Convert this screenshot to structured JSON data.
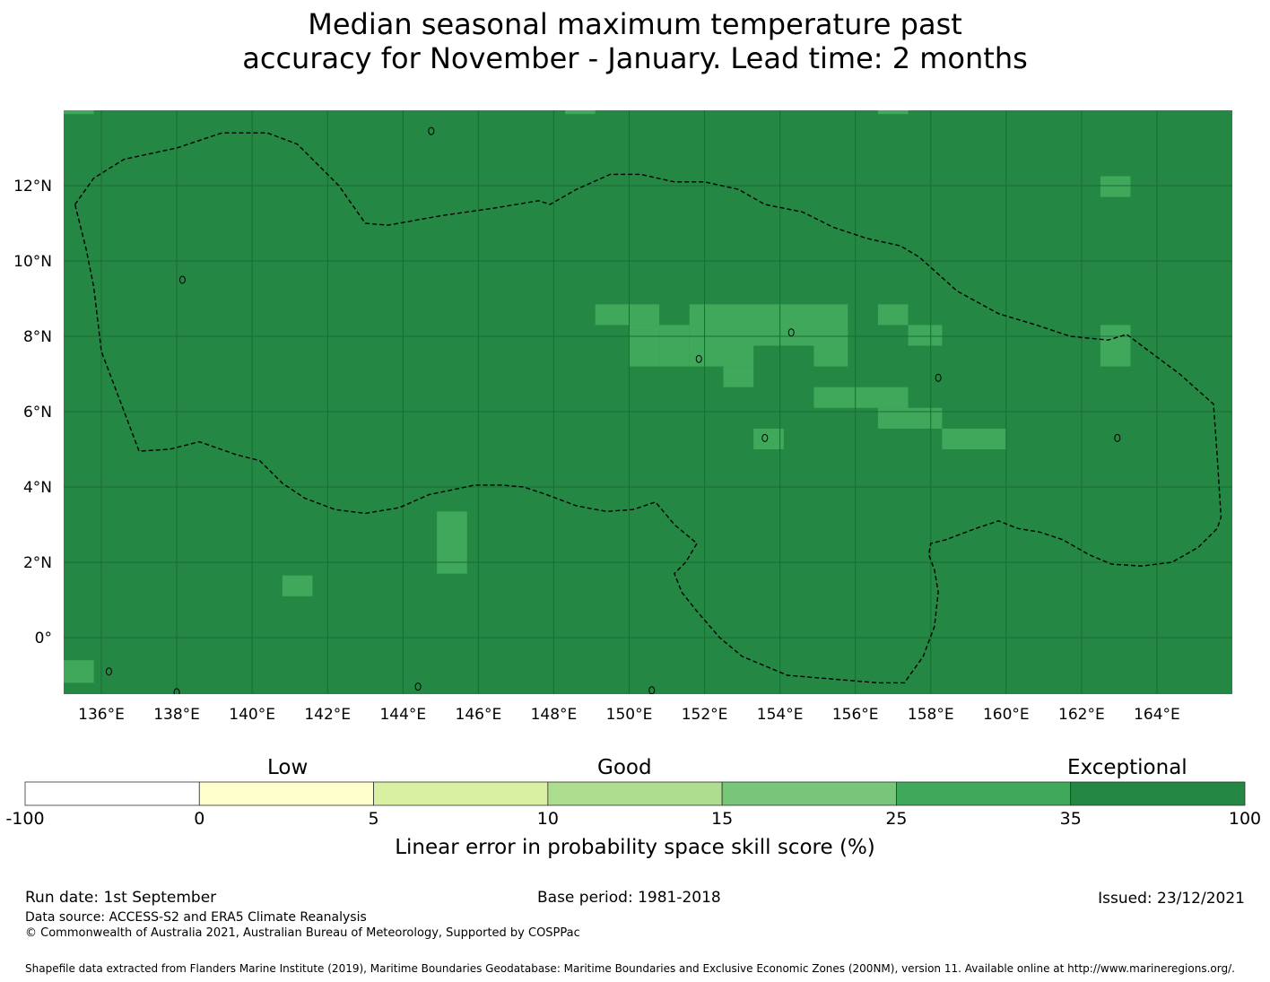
{
  "title": {
    "line1": "Median seasonal maximum temperature past",
    "line2": "accuracy for November - January. Lead time: 2 months"
  },
  "map": {
    "lon_range": [
      135,
      166
    ],
    "lat_range": [
      -1.5,
      14
    ],
    "x_ticks": [
      {
        "lon": 136,
        "label": "136°E"
      },
      {
        "lon": 138,
        "label": "138°E"
      },
      {
        "lon": 140,
        "label": "140°E"
      },
      {
        "lon": 142,
        "label": "142°E"
      },
      {
        "lon": 144,
        "label": "144°E"
      },
      {
        "lon": 146,
        "label": "146°E"
      },
      {
        "lon": 148,
        "label": "148°E"
      },
      {
        "lon": 150,
        "label": "150°E"
      },
      {
        "lon": 152,
        "label": "152°E"
      },
      {
        "lon": 154,
        "label": "154°E"
      },
      {
        "lon": 156,
        "label": "156°E"
      },
      {
        "lon": 158,
        "label": "158°E"
      },
      {
        "lon": 160,
        "label": "160°E"
      },
      {
        "lon": 162,
        "label": "162°E"
      },
      {
        "lon": 164,
        "label": "164°E"
      }
    ],
    "y_ticks": [
      {
        "lat": 0,
        "label": "0°"
      },
      {
        "lat": 2,
        "label": "2°N"
      },
      {
        "lat": 4,
        "label": "4°N"
      },
      {
        "lat": 6,
        "label": "6°N"
      },
      {
        "lat": 8,
        "label": "8°N"
      },
      {
        "lat": 10,
        "label": "10°N"
      },
      {
        "lat": 12,
        "label": "12°N"
      }
    ],
    "background_color": "#248743",
    "gridlines": true,
    "eez_boundary_style": "dashed",
    "eez_boundary": [
      [
        135.3,
        11.5
      ],
      [
        135.8,
        12.2
      ],
      [
        136.6,
        12.7
      ],
      [
        138.0,
        13.0
      ],
      [
        139.2,
        13.4
      ],
      [
        140.4,
        13.4
      ],
      [
        141.2,
        13.1
      ],
      [
        142.3,
        12.0
      ],
      [
        143.0,
        11.0
      ],
      [
        143.6,
        10.95
      ],
      [
        145.0,
        11.2
      ],
      [
        146.4,
        11.4
      ],
      [
        147.6,
        11.6
      ],
      [
        147.9,
        11.5
      ],
      [
        148.6,
        11.9
      ],
      [
        149.5,
        12.3
      ],
      [
        150.3,
        12.3
      ],
      [
        151.2,
        12.1
      ],
      [
        152.0,
        12.1
      ],
      [
        152.9,
        11.9
      ],
      [
        153.6,
        11.5
      ],
      [
        154.6,
        11.3
      ],
      [
        155.4,
        10.9
      ],
      [
        156.3,
        10.6
      ],
      [
        157.2,
        10.4
      ],
      [
        157.7,
        10.1
      ],
      [
        158.7,
        9.2
      ],
      [
        159.8,
        8.6
      ],
      [
        160.8,
        8.3
      ],
      [
        161.7,
        8.0
      ],
      [
        162.7,
        7.9
      ],
      [
        163.2,
        8.05
      ],
      [
        163.8,
        7.6
      ],
      [
        164.6,
        7.0
      ],
      [
        165.5,
        6.2
      ],
      [
        165.6,
        4.8
      ],
      [
        165.7,
        3.2
      ],
      [
        165.6,
        2.9
      ],
      [
        165.1,
        2.4
      ],
      [
        164.4,
        2.0
      ],
      [
        163.6,
        1.9
      ],
      [
        162.8,
        1.95
      ],
      [
        162.2,
        2.2
      ],
      [
        161.5,
        2.6
      ],
      [
        160.9,
        2.8
      ],
      [
        160.3,
        2.9
      ],
      [
        159.8,
        3.1
      ],
      [
        159.2,
        2.9
      ],
      [
        158.4,
        2.6
      ],
      [
        158.0,
        2.5
      ],
      [
        157.95,
        2.2
      ],
      [
        158.1,
        1.8
      ],
      [
        158.2,
        1.2
      ],
      [
        158.1,
        0.3
      ],
      [
        157.8,
        -0.5
      ],
      [
        157.3,
        -1.2
      ],
      [
        156.6,
        -1.2
      ],
      [
        155.4,
        -1.1
      ],
      [
        154.2,
        -1.0
      ],
      [
        153.0,
        -0.5
      ],
      [
        152.4,
        0.0
      ],
      [
        151.8,
        0.7
      ],
      [
        151.4,
        1.2
      ],
      [
        151.2,
        1.7
      ],
      [
        151.5,
        2.0
      ],
      [
        151.8,
        2.5
      ],
      [
        151.2,
        3.0
      ],
      [
        150.7,
        3.6
      ],
      [
        150.1,
        3.4
      ],
      [
        149.4,
        3.35
      ],
      [
        148.6,
        3.5
      ],
      [
        147.8,
        3.8
      ],
      [
        147.2,
        4.0
      ],
      [
        146.6,
        4.05
      ],
      [
        145.9,
        4.05
      ],
      [
        145.2,
        3.9
      ],
      [
        144.7,
        3.8
      ],
      [
        143.9,
        3.45
      ],
      [
        143.0,
        3.3
      ],
      [
        142.2,
        3.4
      ],
      [
        141.4,
        3.7
      ],
      [
        140.8,
        4.1
      ],
      [
        140.2,
        4.7
      ],
      [
        139.6,
        4.85
      ],
      [
        138.6,
        5.2
      ],
      [
        137.8,
        5.0
      ],
      [
        137.0,
        4.95
      ],
      [
        136.0,
        7.6
      ],
      [
        135.8,
        9.3
      ],
      [
        135.6,
        10.3
      ],
      [
        135.3,
        11.5
      ]
    ],
    "skill_patches": [
      {
        "lon": [
          135.0,
          135.8
        ],
        "lat": [
          13.9,
          14.0
        ]
      },
      {
        "lon": [
          148.3,
          149.1
        ],
        "lat": [
          13.9,
          14.0
        ]
      },
      {
        "lon": [
          156.6,
          157.4
        ],
        "lat": [
          13.9,
          14.0
        ]
      },
      {
        "lon": [
          162.5,
          163.3
        ],
        "lat": [
          11.7,
          12.25
        ]
      },
      {
        "lon": [
          149.1,
          150.8
        ],
        "lat": [
          8.3,
          8.85
        ]
      },
      {
        "lon": [
          150.0,
          150.8
        ],
        "lat": [
          7.2,
          8.3
        ]
      },
      {
        "lon": [
          150.8,
          151.6
        ],
        "lat": [
          7.2,
          8.3
        ]
      },
      {
        "lon": [
          151.6,
          155.8
        ],
        "lat": [
          7.75,
          8.85
        ]
      },
      {
        "lon": [
          151.6,
          153.3
        ],
        "lat": [
          7.2,
          7.75
        ]
      },
      {
        "lon": [
          152.5,
          153.3
        ],
        "lat": [
          6.65,
          7.2
        ]
      },
      {
        "lon": [
          154.9,
          155.8
        ],
        "lat": [
          7.2,
          7.75
        ]
      },
      {
        "lon": [
          156.6,
          157.4
        ],
        "lat": [
          8.3,
          8.85
        ]
      },
      {
        "lon": [
          157.4,
          158.3
        ],
        "lat": [
          7.75,
          8.3
        ]
      },
      {
        "lon": [
          162.5,
          163.3
        ],
        "lat": [
          7.2,
          8.3
        ]
      },
      {
        "lon": [
          154.9,
          157.4
        ],
        "lat": [
          6.1,
          6.65
        ]
      },
      {
        "lon": [
          156.6,
          158.3
        ],
        "lat": [
          5.55,
          6.1
        ]
      },
      {
        "lon": [
          158.3,
          160.0
        ],
        "lat": [
          5.0,
          5.55
        ]
      },
      {
        "lon": [
          153.3,
          154.1
        ],
        "lat": [
          5.0,
          5.55
        ]
      },
      {
        "lon": [
          144.9,
          145.7
        ],
        "lat": [
          1.7,
          3.35
        ]
      },
      {
        "lon": [
          140.8,
          141.6
        ],
        "lat": [
          1.1,
          1.65
        ]
      },
      {
        "lon": [
          135.0,
          135.8
        ],
        "lat": [
          -1.2,
          -0.6
        ]
      }
    ],
    "skill_patch_color": "#3fa85a",
    "islands": [
      {
        "lon": 144.75,
        "lat": 13.45
      },
      {
        "lon": 138.15,
        "lat": 9.5
      },
      {
        "lon": 151.85,
        "lat": 7.4
      },
      {
        "lon": 158.2,
        "lat": 6.9
      },
      {
        "lon": 162.95,
        "lat": 5.3
      },
      {
        "lon": 153.6,
        "lat": 5.3
      },
      {
        "lon": 154.3,
        "lat": 8.1
      },
      {
        "lon": 144.4,
        "lat": -1.3
      },
      {
        "lon": 150.6,
        "lat": -1.4
      },
      {
        "lon": 136.2,
        "lat": -0.9
      },
      {
        "lon": 138.0,
        "lat": -1.45
      }
    ]
  },
  "colorbar": {
    "categories": [
      "Low",
      "Good",
      "Exceptional"
    ],
    "tick_labels": [
      "-100",
      "0",
      "5",
      "10",
      "15",
      "25",
      "35",
      "100"
    ],
    "colors": [
      "#ffffff",
      "#ffffcc",
      "#d9f0a3",
      "#addd8e",
      "#78c679",
      "#3fa85a",
      "#248743"
    ],
    "label": "Linear error in probability space skill score (%)"
  },
  "footer": {
    "run_date": "Run date: 1st September",
    "base_period": "Base period: 1981-2018",
    "issued": "Issued: 23/12/2021",
    "data_source": "Data source: ACCESS-S2 and ERA5 Climate Reanalysis",
    "copyright": "© Commonwealth of Australia 2021, Australian Bureau of Meteorology, Supported by COSPPac",
    "shapefile": "Shapefile data extracted from Flanders Marine Institute (2019), Maritime Boundaries Geodatabase: Maritime Boundaries and Exclusive Economic Zones (200NM), version 11. Available online at http://www.marineregions.org/."
  }
}
